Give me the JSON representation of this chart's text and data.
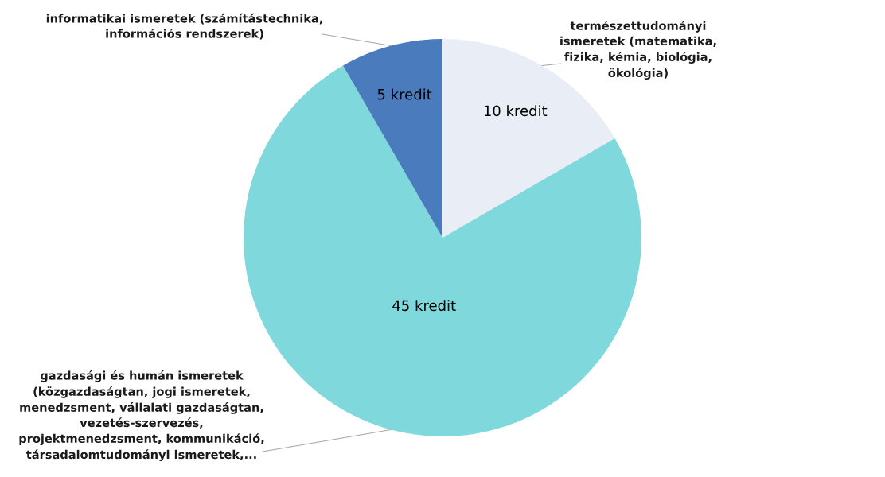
{
  "chart_data": {
    "type": "pie",
    "categories": [
      "természettudományi\nismeretek (matematika,\nfizika, kémia, biológia,\nökológia)",
      "gazdasági és humán ismeretek\n(közgazdaságtan, jogi ismeretek,\nmenedzsment, vállalati gazdaságtan,\nvezetés-szervezés,\nprojektmenedzsment, kommunikáció,\ntársadalomtudományi ismeretek,...",
      "informatikai ismeretek (számítástechnika,\ninformációs rendszerek)"
    ],
    "values": [
      10,
      45,
      5
    ],
    "colors": [
      "#e9eef6",
      "#7fd8dc",
      "#4a7bbd"
    ],
    "value_labels": [
      "10 kredit",
      "45 kredit",
      "5 kredit"
    ]
  }
}
